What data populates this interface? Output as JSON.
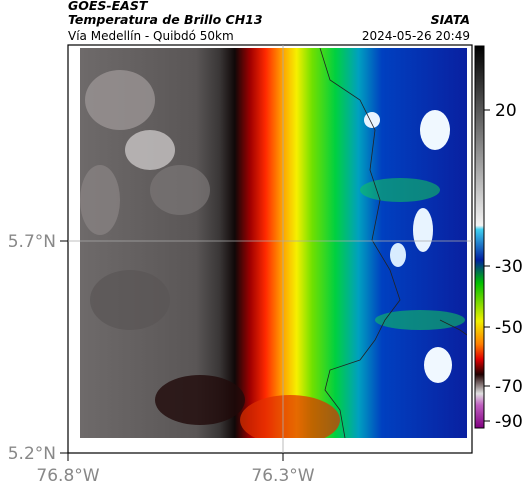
{
  "header": {
    "title": "GOES-EAST",
    "subtitle": "Temperatura de Brillo CH13",
    "source": "SIATA",
    "route": "Vía Medellín - Quibdó 50km",
    "timestamp": "2024-05-26 20:49"
  },
  "map": {
    "x_labels": [
      "76.8°W",
      "76.3°W"
    ],
    "y_labels": [
      "5.7°N",
      "5.2°N"
    ]
  },
  "colorbar": {
    "labels": [
      "20",
      "-30",
      "-50",
      "-70",
      "-90"
    ]
  }
}
